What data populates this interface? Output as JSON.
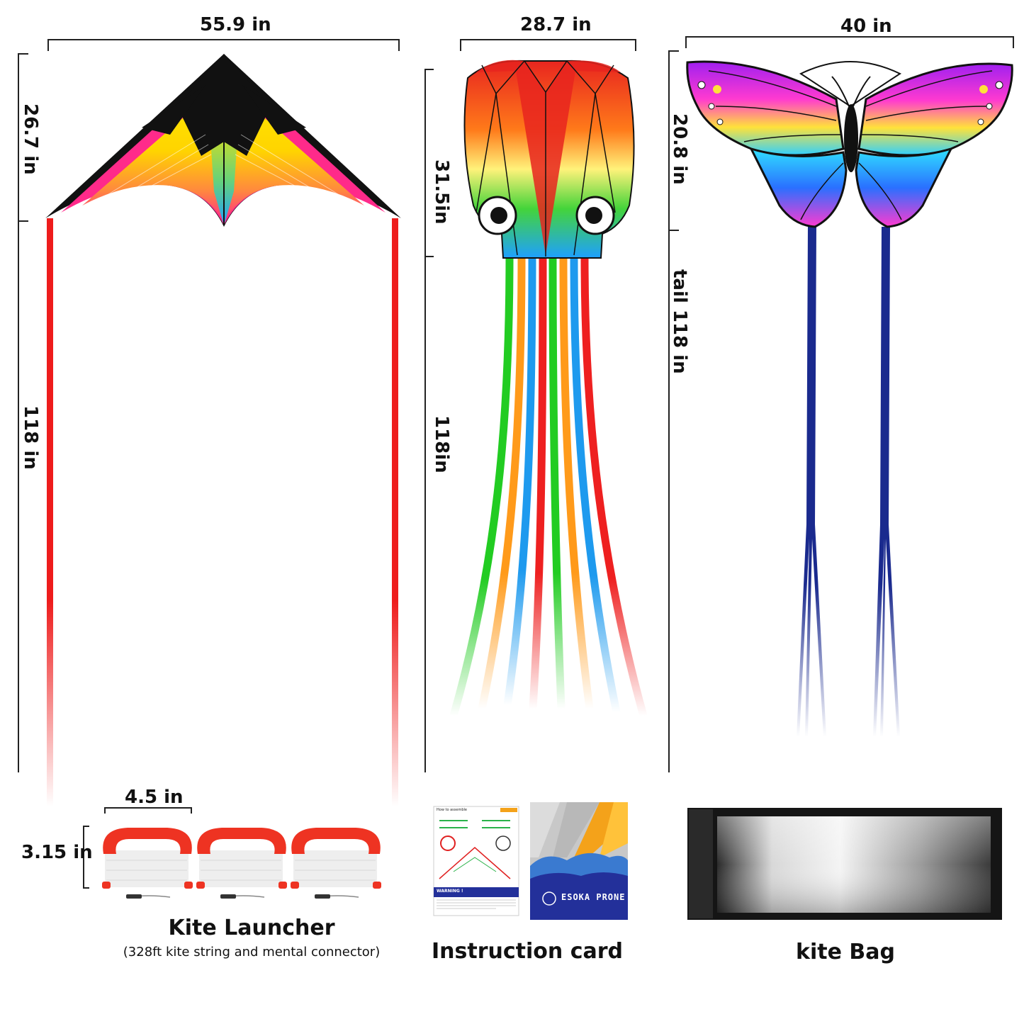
{
  "dimensions": {
    "delta_width": "55.9 in",
    "delta_height": "26.7 in",
    "delta_tail": "118 in",
    "octopus_width": "28.7 in",
    "octopus_height": "31.5in",
    "octopus_tail": "118in",
    "butterfly_width": "40 in",
    "butterfly_height": "20.8 in",
    "butterfly_tail": "tail 118 in",
    "launcher_width": "4.5 in",
    "launcher_height": "3.15 in"
  },
  "captions": {
    "launcher_title": "Kite Launcher",
    "launcher_subtitle": "(328ft kite string and mental connector)",
    "instruction_title": "Instruction card",
    "bag_title": "kite Bag"
  },
  "card": {
    "brand": "ESOKA PRONE",
    "header": "How to assemble",
    "warning": "WARNING !"
  },
  "colors": {
    "tail_red": "#ee1c1c",
    "tail_blue": "#1a2a8e",
    "octopus_red": "#e8251f",
    "card_blue": "#23309a"
  }
}
